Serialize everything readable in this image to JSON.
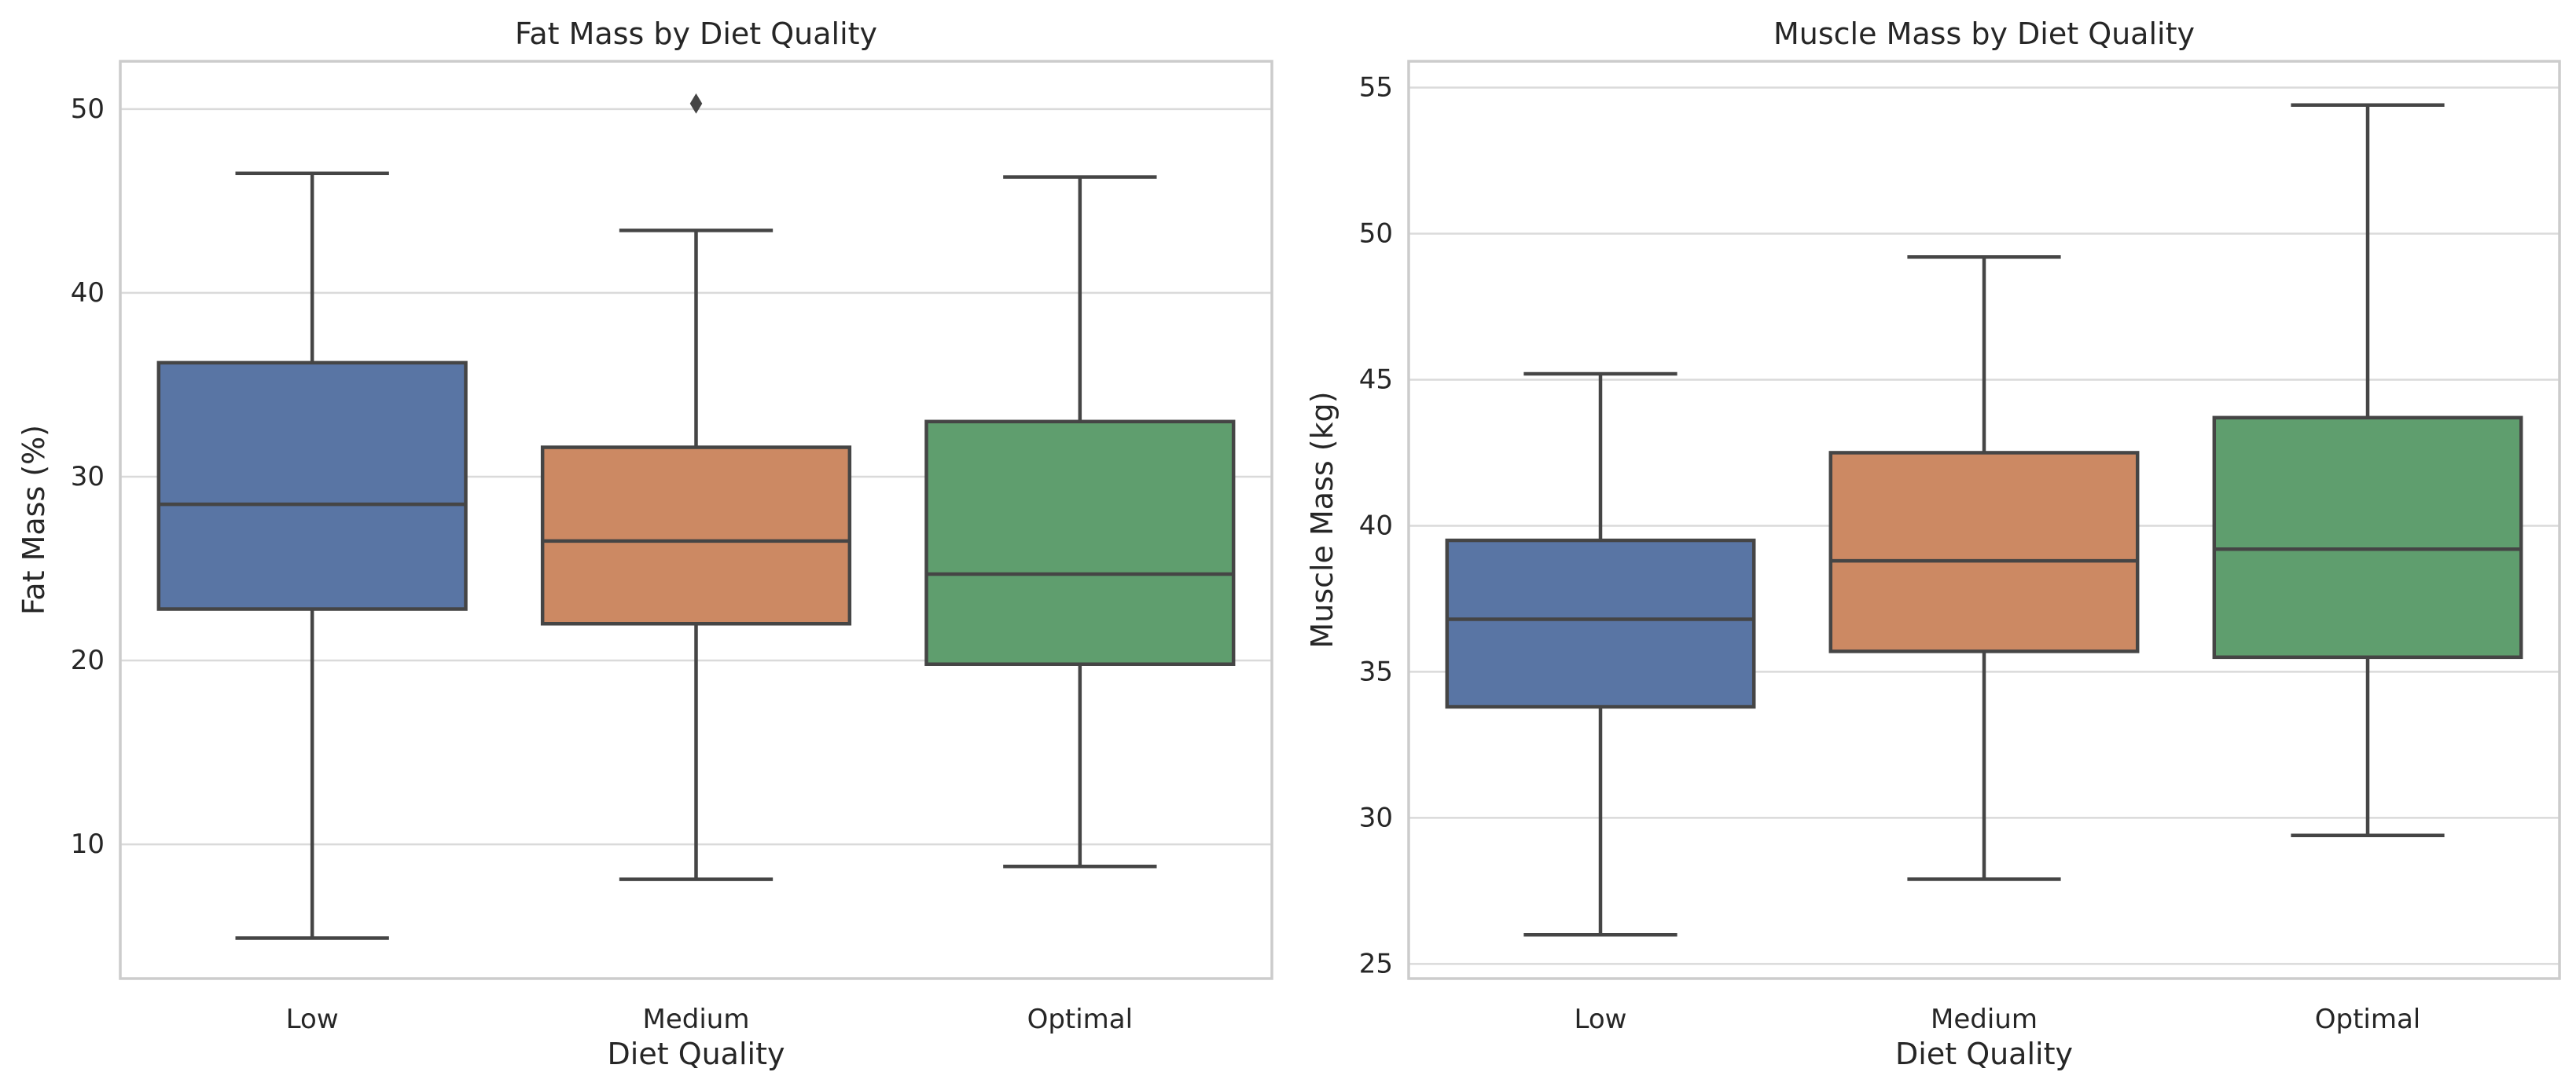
{
  "chart_data": [
    {
      "type": "box",
      "title": "Fat Mass by Diet Quality",
      "xlabel": "Diet Quality",
      "ylabel": "Fat Mass (%)",
      "ylim": [
        2.7,
        52.6
      ],
      "yticks": [
        10,
        20,
        30,
        40,
        50
      ],
      "categories": [
        "Low",
        "Medium",
        "Optimal"
      ],
      "grid": true,
      "boxes": [
        {
          "category": "Low",
          "whisker_low": 4.9,
          "q1": 22.8,
          "median": 28.5,
          "q3": 36.2,
          "whisker_high": 46.5,
          "outliers": [],
          "color": "#5975a4"
        },
        {
          "category": "Medium",
          "whisker_low": 8.1,
          "q1": 22.0,
          "median": 26.5,
          "q3": 31.6,
          "whisker_high": 43.4,
          "outliers": [
            50.3
          ],
          "color": "#cc8963"
        },
        {
          "category": "Optimal",
          "whisker_low": 8.8,
          "q1": 19.8,
          "median": 24.7,
          "q3": 33.0,
          "whisker_high": 46.3,
          "outliers": [],
          "color": "#5f9e6e"
        }
      ]
    },
    {
      "type": "box",
      "title": "Muscle Mass by Diet Quality",
      "xlabel": "Diet Quality",
      "ylabel": "Muscle Mass (kg)",
      "ylim": [
        24.5,
        55.9
      ],
      "yticks": [
        25,
        30,
        35,
        40,
        45,
        50,
        55
      ],
      "categories": [
        "Low",
        "Medium",
        "Optimal"
      ],
      "grid": true,
      "boxes": [
        {
          "category": "Low",
          "whisker_low": 26.0,
          "q1": 33.8,
          "median": 36.8,
          "q3": 39.5,
          "whisker_high": 45.2,
          "outliers": [],
          "color": "#5975a4"
        },
        {
          "category": "Medium",
          "whisker_low": 27.9,
          "q1": 35.7,
          "median": 38.8,
          "q3": 42.5,
          "whisker_high": 49.2,
          "outliers": [],
          "color": "#cc8963"
        },
        {
          "category": "Optimal",
          "whisker_low": 29.4,
          "q1": 35.5,
          "median": 39.2,
          "q3": 43.7,
          "whisker_high": 54.4,
          "outliers": [],
          "color": "#5f9e6e"
        }
      ]
    }
  ]
}
